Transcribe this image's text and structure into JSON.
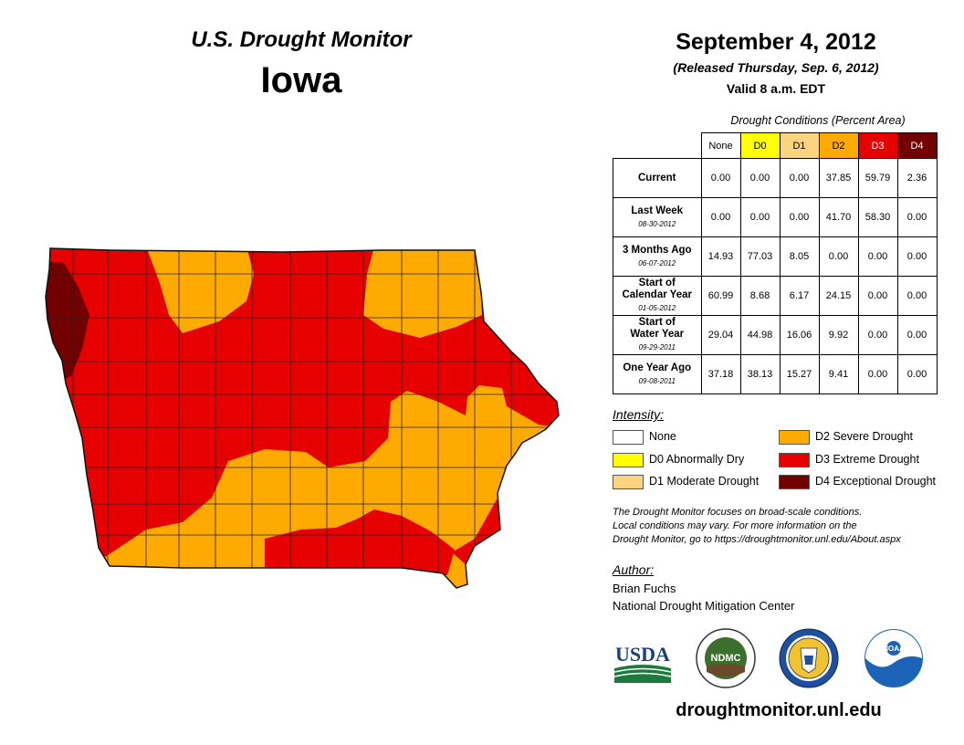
{
  "header": {
    "title": "U.S. Drought Monitor",
    "state": "Iowa",
    "date": "September 4, 2012",
    "released": "(Released Thursday, Sep. 6, 2012)",
    "valid": "Valid 8 a.m. EDT"
  },
  "table": {
    "caption": "Drought Conditions (Percent Area)",
    "columns": [
      "None",
      "D0",
      "D1",
      "D2",
      "D3",
      "D4"
    ],
    "rows": [
      {
        "label": "Current",
        "label2": "",
        "date": "",
        "values": [
          "0.00",
          "0.00",
          "0.00",
          "37.85",
          "59.79",
          "2.36"
        ]
      },
      {
        "label": "Last Week",
        "label2": "",
        "date": "08-30-2012",
        "values": [
          "0.00",
          "0.00",
          "0.00",
          "41.70",
          "58.30",
          "0.00"
        ]
      },
      {
        "label": "3 Months Ago",
        "label2": "",
        "date": "06-07-2012",
        "values": [
          "14.93",
          "77.03",
          "8.05",
          "0.00",
          "0.00",
          "0.00"
        ]
      },
      {
        "label": "Start of",
        "label2": "Calendar Year",
        "date": "01-05-2012",
        "values": [
          "60.99",
          "8.68",
          "6.17",
          "24.15",
          "0.00",
          "0.00"
        ]
      },
      {
        "label": "Start of",
        "label2": "Water Year",
        "date": "09-29-2011",
        "values": [
          "29.04",
          "44.98",
          "16.06",
          "9.92",
          "0.00",
          "0.00"
        ]
      },
      {
        "label": "One Year Ago",
        "label2": "",
        "date": "09-08-2011",
        "values": [
          "37.18",
          "38.13",
          "15.27",
          "9.41",
          "0.00",
          "0.00"
        ]
      }
    ]
  },
  "legend": {
    "title": "Intensity:",
    "items": [
      {
        "label": "None",
        "color": "#ffffff"
      },
      {
        "label": "D0 Abnormally Dry",
        "color": "#ffff00"
      },
      {
        "label": "D1 Moderate Drought",
        "color": "#fcd37f"
      },
      {
        "label": "D2 Severe Drought",
        "color": "#ffaa00"
      },
      {
        "label": "D3 Extreme Drought",
        "color": "#e60000"
      },
      {
        "label": "D4 Exceptional Drought",
        "color": "#730000"
      }
    ]
  },
  "note": {
    "line1": "The Drought Monitor focuses on broad-scale conditions.",
    "line2": "Local conditions may vary. For more information on the",
    "line3": "Drought Monitor, go to https://droughtmonitor.unl.edu/About.aspx"
  },
  "author": {
    "title": "Author:",
    "name": "Brian Fuchs",
    "org": "National Drought Mitigation Center"
  },
  "logos": {
    "usda": "USDA",
    "ndmc": "NDMC",
    "noaa": "NOAA"
  },
  "footer": {
    "url": "droughtmonitor.unl.edu"
  },
  "colors": {
    "d2": "#ffaa00",
    "d3": "#e60000",
    "d4": "#730000",
    "county_line": "#222222"
  }
}
